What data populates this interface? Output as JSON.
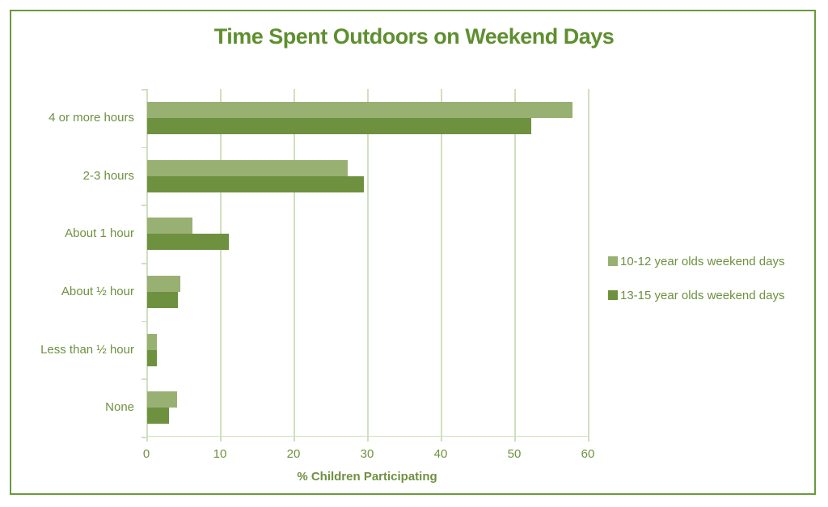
{
  "chart_data": {
    "type": "bar",
    "orientation": "horizontal",
    "title": "Time Spent Outdoors on Weekend Days",
    "xlabel": "% Children Participating",
    "ylabel": "",
    "xlim": [
      0,
      60
    ],
    "xticks": [
      "0",
      "10",
      "20",
      "30",
      "40",
      "50",
      "60"
    ],
    "grid": true,
    "legend_position": "right",
    "categories": [
      "4 or more hours",
      "2-3 hours",
      "About 1 hour",
      "About ½ hour",
      "Less than ½ hour",
      "None"
    ],
    "series": [
      {
        "name": "10-12 year olds weekend days",
        "color": "#98b072",
        "values": [
          57.8,
          27.3,
          6.2,
          4.5,
          1.3,
          4.1
        ]
      },
      {
        "name": "13-15 year olds weekend days",
        "color": "#6e9140",
        "values": [
          52.2,
          29.4,
          11.1,
          4.2,
          1.3,
          3.0
        ]
      }
    ]
  }
}
